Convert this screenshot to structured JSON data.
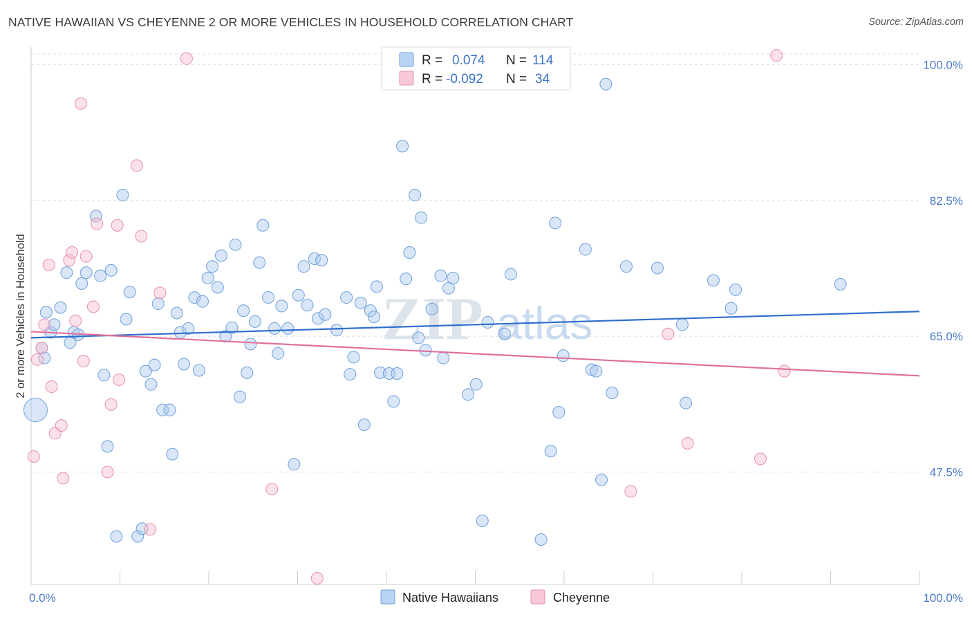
{
  "title": "NATIVE HAWAIIAN VS CHEYENNE 2 OR MORE VEHICLES IN HOUSEHOLD CORRELATION CHART",
  "source": "Source: ZipAtlas.com",
  "chart_data": {
    "type": "scatter",
    "ylabel": "2 or more Vehicles in Household",
    "x_ticks": [
      "0.0%",
      "100.0%"
    ],
    "y_ticks": [
      "100.0%",
      "82.5%",
      "65.0%",
      "47.5%"
    ],
    "y_tick_values": [
      100,
      82.5,
      65,
      47.5
    ],
    "xlim": [
      0,
      100
    ],
    "ylim": [
      33,
      103
    ],
    "grid": true,
    "legend_position": "top-center",
    "watermark": {
      "zip": "ZIP",
      "atlas": "atlas"
    },
    "legend": [
      {
        "r_label": "R =",
        "r_value": "0.074",
        "n_label": "N =",
        "n_value": "114"
      },
      {
        "r_label": "R =",
        "r_value": "-0.092",
        "n_label": "N =",
        "n_value": "34"
      }
    ],
    "series": [
      {
        "name": "Native Hawaiians",
        "color": "#a9c8f0",
        "stroke": "#6f9fd8",
        "line_color": "#2f6fcc",
        "trend": [
          [
            0,
            64.8
          ],
          [
            100,
            68.2
          ]
        ],
        "points": [
          [
            0.5,
            55.5
          ],
          [
            1.2,
            63.5
          ],
          [
            1.5,
            62.2
          ],
          [
            1.7,
            68.1
          ],
          [
            2.2,
            65.5
          ],
          [
            2.6,
            66.5
          ],
          [
            3.3,
            68.7
          ],
          [
            4.0,
            73.2
          ],
          [
            4.4,
            64.2
          ],
          [
            4.8,
            65.5
          ],
          [
            5.3,
            65.2
          ],
          [
            5.7,
            71.8
          ],
          [
            6.2,
            73.2
          ],
          [
            7.3,
            80.5
          ],
          [
            7.8,
            72.8
          ],
          [
            8.2,
            60.0
          ],
          [
            8.6,
            50.8
          ],
          [
            9.0,
            73.5
          ],
          [
            9.6,
            39.2
          ],
          [
            10.3,
            83.2
          ],
          [
            10.7,
            67.2
          ],
          [
            11.1,
            70.7
          ],
          [
            12.0,
            39.2
          ],
          [
            12.5,
            40.2
          ],
          [
            12.9,
            60.5
          ],
          [
            13.5,
            58.8
          ],
          [
            13.9,
            61.3
          ],
          [
            14.3,
            69.2
          ],
          [
            14.8,
            55.5
          ],
          [
            15.6,
            55.5
          ],
          [
            15.9,
            49.8
          ],
          [
            16.4,
            68.0
          ],
          [
            16.8,
            65.5
          ],
          [
            17.2,
            61.4
          ],
          [
            17.7,
            66.0
          ],
          [
            18.4,
            70.0
          ],
          [
            18.9,
            60.6
          ],
          [
            19.3,
            69.5
          ],
          [
            19.9,
            72.5
          ],
          [
            20.4,
            74.0
          ],
          [
            21.0,
            71.3
          ],
          [
            21.4,
            75.4
          ],
          [
            21.9,
            65.0
          ],
          [
            22.6,
            66.1
          ],
          [
            23.0,
            76.8
          ],
          [
            23.5,
            57.2
          ],
          [
            23.9,
            68.3
          ],
          [
            24.3,
            60.3
          ],
          [
            24.7,
            64.0
          ],
          [
            25.2,
            66.9
          ],
          [
            25.7,
            74.5
          ],
          [
            26.1,
            79.3
          ],
          [
            26.7,
            70.0
          ],
          [
            27.4,
            66.0
          ],
          [
            27.8,
            62.8
          ],
          [
            28.2,
            68.9
          ],
          [
            28.9,
            66.0
          ],
          [
            29.6,
            48.5
          ],
          [
            30.1,
            70.3
          ],
          [
            30.7,
            74.0
          ],
          [
            31.1,
            69.0
          ],
          [
            31.9,
            75.0
          ],
          [
            32.3,
            67.3
          ],
          [
            32.7,
            74.8
          ],
          [
            33.1,
            67.8
          ],
          [
            34.4,
            65.8
          ],
          [
            35.5,
            70.0
          ],
          [
            35.9,
            60.1
          ],
          [
            36.3,
            62.3
          ],
          [
            37.1,
            69.3
          ],
          [
            37.5,
            53.6
          ],
          [
            38.2,
            68.3
          ],
          [
            38.6,
            67.5
          ],
          [
            38.9,
            71.4
          ],
          [
            39.3,
            60.3
          ],
          [
            40.3,
            60.2
          ],
          [
            40.8,
            56.6
          ],
          [
            41.2,
            60.2
          ],
          [
            41.8,
            89.5
          ],
          [
            42.2,
            72.4
          ],
          [
            42.6,
            75.8
          ],
          [
            43.2,
            83.2
          ],
          [
            43.6,
            64.8
          ],
          [
            43.9,
            80.3
          ],
          [
            44.4,
            63.2
          ],
          [
            45.1,
            68.5
          ],
          [
            46.1,
            72.8
          ],
          [
            46.4,
            62.2
          ],
          [
            47.0,
            71.2
          ],
          [
            47.5,
            72.5
          ],
          [
            49.2,
            57.5
          ],
          [
            50.1,
            58.8
          ],
          [
            50.8,
            41.2
          ],
          [
            51.4,
            66.8
          ],
          [
            53.3,
            65.3
          ],
          [
            54.0,
            73.0
          ],
          [
            57.4,
            38.8
          ],
          [
            58.5,
            50.2
          ],
          [
            59.0,
            79.6
          ],
          [
            59.4,
            55.2
          ],
          [
            59.9,
            62.5
          ],
          [
            62.4,
            76.2
          ],
          [
            63.1,
            60.7
          ],
          [
            63.6,
            60.5
          ],
          [
            64.2,
            46.5
          ],
          [
            64.7,
            97.5
          ],
          [
            65.4,
            57.7
          ],
          [
            67.0,
            74.0
          ],
          [
            70.5,
            73.8
          ],
          [
            73.7,
            56.4
          ],
          [
            73.3,
            66.5
          ],
          [
            76.8,
            72.2
          ],
          [
            78.8,
            68.6
          ],
          [
            79.3,
            71.0
          ],
          [
            91.1,
            71.7
          ]
        ]
      },
      {
        "name": "Cheyenne",
        "color": "#f6bfd1",
        "stroke": "#e48fae",
        "line_color": "#e0709a",
        "trend": [
          [
            0,
            65.6
          ],
          [
            100,
            59.9
          ]
        ],
        "points": [
          [
            0.3,
            49.5
          ],
          [
            0.7,
            62.0
          ],
          [
            1.2,
            63.5
          ],
          [
            1.5,
            66.5
          ],
          [
            2.0,
            74.2
          ],
          [
            2.3,
            58.5
          ],
          [
            2.7,
            52.5
          ],
          [
            3.4,
            53.5
          ],
          [
            3.6,
            46.7
          ],
          [
            4.3,
            74.8
          ],
          [
            4.6,
            75.8
          ],
          [
            5.0,
            67.0
          ],
          [
            5.6,
            95.0
          ],
          [
            5.9,
            61.8
          ],
          [
            6.2,
            75.3
          ],
          [
            7.0,
            68.8
          ],
          [
            7.4,
            79.5
          ],
          [
            8.6,
            47.5
          ],
          [
            9.0,
            56.2
          ],
          [
            9.7,
            79.3
          ],
          [
            9.9,
            59.4
          ],
          [
            11.9,
            87.0
          ],
          [
            12.4,
            77.9
          ],
          [
            13.4,
            40.1
          ],
          [
            14.5,
            70.6
          ],
          [
            17.5,
            100.8
          ],
          [
            27.1,
            45.3
          ],
          [
            32.2,
            33.8
          ],
          [
            67.5,
            45.0
          ],
          [
            71.7,
            65.3
          ],
          [
            73.9,
            51.2
          ],
          [
            82.1,
            49.2
          ],
          [
            83.9,
            101.2
          ],
          [
            84.8,
            60.5
          ]
        ]
      }
    ]
  },
  "bottom_legend": [
    {
      "label": "Native Hawaiians"
    },
    {
      "label": "Cheyenne"
    }
  ]
}
